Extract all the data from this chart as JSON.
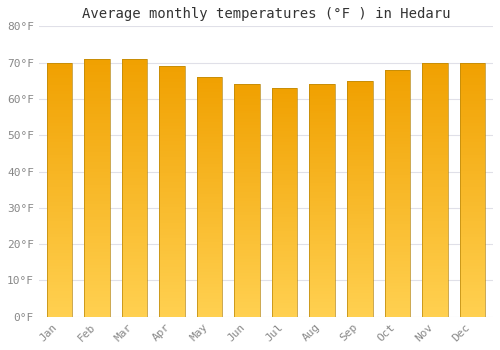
{
  "title": "Average monthly temperatures (°F ) in Hedaru",
  "months": [
    "Jan",
    "Feb",
    "Mar",
    "Apr",
    "May",
    "Jun",
    "Jul",
    "Aug",
    "Sep",
    "Oct",
    "Nov",
    "Dec"
  ],
  "values": [
    70,
    71,
    71,
    69,
    66,
    64,
    63,
    64,
    65,
    68,
    70,
    70
  ],
  "bar_color_top": "#F0A500",
  "bar_color_bottom": "#FFD050",
  "background_color": "#ffffff",
  "plot_bg_color": "#ffffff",
  "ylim": [
    0,
    80
  ],
  "yticks": [
    0,
    10,
    20,
    30,
    40,
    50,
    60,
    70,
    80
  ],
  "grid_color": "#e0e0e8",
  "title_fontsize": 10,
  "tick_fontsize": 8,
  "bar_edge_color": "#b8860b"
}
